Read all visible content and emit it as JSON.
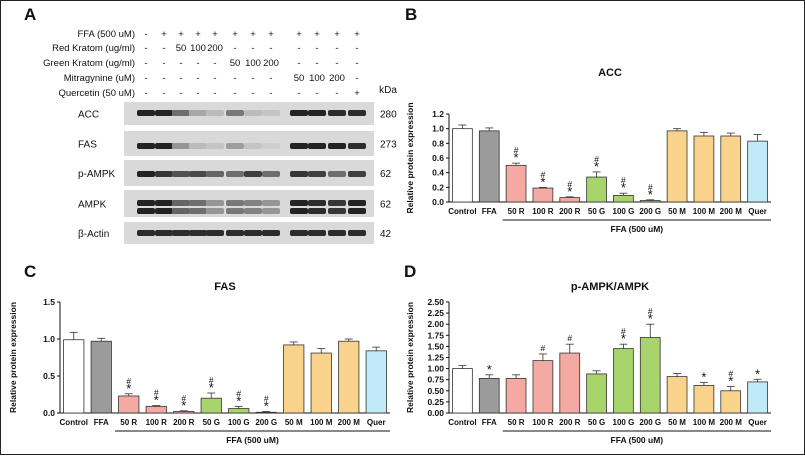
{
  "panels": {
    "A": "A",
    "B": "B",
    "C": "C",
    "D": "D"
  },
  "treatment_table": {
    "rows": [
      {
        "name": "FFA (500 uM)",
        "cells": [
          "-",
          "+",
          "+",
          "+",
          "+",
          "+",
          "+",
          "+",
          "+",
          "+",
          "+",
          "+"
        ]
      },
      {
        "name": "Red Kratom (ug/ml)",
        "cells": [
          "-",
          "-",
          "50",
          "100",
          "200",
          "-",
          "-",
          "-",
          "-",
          "-",
          "-",
          "-"
        ]
      },
      {
        "name": "Green Kratom (ug/ml)",
        "cells": [
          "-",
          "-",
          "-",
          "-",
          "-",
          "50",
          "100",
          "200",
          "-",
          "-",
          "-",
          "-"
        ]
      },
      {
        "name": "Mitragynine (uM)",
        "cells": [
          "-",
          "-",
          "-",
          "-",
          "-",
          "-",
          "-",
          "-",
          "50",
          "100",
          "200",
          "-"
        ]
      },
      {
        "name": "Quercetin (50 uM)",
        "cells": [
          "-",
          "-",
          "-",
          "-",
          "-",
          "-",
          "-",
          "-",
          "-",
          "-",
          "-",
          "+"
        ]
      }
    ]
  },
  "blots": {
    "kda_header": "kDa",
    "rows": [
      {
        "name": "ACC",
        "kda": "280",
        "intensity": [
          0.95,
          0.95,
          0.55,
          0.25,
          0.15,
          0.5,
          0.15,
          0.1,
          0.95,
          0.95,
          0.9,
          0.9
        ]
      },
      {
        "name": "FAS",
        "kda": "273",
        "intensity": [
          0.95,
          0.95,
          0.35,
          0.15,
          0.1,
          0.3,
          0.1,
          0.05,
          0.95,
          0.95,
          0.95,
          0.9
        ]
      },
      {
        "name": "p-AMPK",
        "kda": "62",
        "intensity": [
          0.95,
          0.85,
          0.7,
          0.75,
          0.6,
          0.55,
          0.8,
          0.55,
          0.85,
          0.8,
          0.55,
          0.8
        ]
      },
      {
        "name": "AMPK",
        "kda": "62",
        "intensity": [
          0.95,
          0.95,
          0.6,
          0.55,
          0.35,
          0.5,
          0.45,
          0.35,
          0.95,
          0.9,
          0.85,
          0.95
        ]
      },
      {
        "name": "β-Actin",
        "kda": "42",
        "intensity": [
          0.9,
          0.9,
          0.9,
          0.9,
          0.9,
          0.9,
          0.9,
          0.9,
          0.9,
          0.9,
          0.9,
          0.9
        ]
      }
    ]
  },
  "colors": {
    "white": "#ffffff",
    "gray": "#9b9b9b",
    "red": "#f4aaa2",
    "green": "#a8d46c",
    "orange": "#f9d38c",
    "blue": "#bfeaf6"
  },
  "chart_data": [
    {
      "panel": "B",
      "type": "bar",
      "title": "ACC",
      "ylabel": "Relative protein expression",
      "xgroup_label": "FFA (500 uM)",
      "categories": [
        "Control",
        "FFA",
        "50 R",
        "100 R",
        "200 R",
        "50 G",
        "100 G",
        "200 G",
        "50 M",
        "100 M",
        "200 M",
        "Quer"
      ],
      "values": [
        1.0,
        0.97,
        0.5,
        0.19,
        0.06,
        0.34,
        0.09,
        0.02,
        0.97,
        0.9,
        0.9,
        0.83
      ],
      "errors": [
        0.05,
        0.04,
        0.03,
        0.01,
        0.01,
        0.07,
        0.03,
        0.01,
        0.03,
        0.05,
        0.04,
        0.09
      ],
      "marks": [
        "",
        "",
        "#*",
        "#*",
        "#*",
        "#*",
        "#*",
        "#*",
        "",
        "",
        "",
        ""
      ],
      "color_keys": [
        "white",
        "gray",
        "red",
        "red",
        "red",
        "green",
        "green",
        "green",
        "orange",
        "orange",
        "orange",
        "blue"
      ],
      "ylim": [
        0,
        1.2
      ],
      "yticks": [
        "0.0",
        "0.2",
        "0.4",
        "0.6",
        "0.8",
        "1.0",
        "1.2"
      ]
    },
    {
      "panel": "C",
      "type": "bar",
      "title": "FAS",
      "ylabel": "Relative protein expression",
      "xgroup_label": "FFA (500 uM)",
      "categories": [
        "Control",
        "FFA",
        "50 R",
        "100 R",
        "200 R",
        "50 G",
        "100 G",
        "200 G",
        "50 M",
        "100 M",
        "200 M",
        "Quer"
      ],
      "values": [
        0.99,
        0.97,
        0.23,
        0.09,
        0.02,
        0.2,
        0.06,
        0.01,
        0.92,
        0.81,
        0.97,
        0.84
      ],
      "errors": [
        0.1,
        0.04,
        0.03,
        0.01,
        0.01,
        0.07,
        0.03,
        0.01,
        0.04,
        0.06,
        0.03,
        0.05
      ],
      "marks": [
        "",
        "",
        "#*",
        "#*",
        "#*",
        "#*",
        "#*",
        "#*",
        "",
        "",
        "",
        ""
      ],
      "color_keys": [
        "white",
        "gray",
        "red",
        "red",
        "red",
        "green",
        "green",
        "green",
        "orange",
        "orange",
        "orange",
        "blue"
      ],
      "ylim": [
        0,
        1.5
      ],
      "yticks": [
        "0.0",
        "0.5",
        "1.0",
        "1.5"
      ]
    },
    {
      "panel": "D",
      "type": "bar",
      "title": "p-AMPK/AMPK",
      "ylabel": "Relative protein expression",
      "xgroup_label": "FFA (500 uM)",
      "categories": [
        "Control",
        "FFA",
        "50 R",
        "100 R",
        "200 R",
        "50 G",
        "100 G",
        "200 G",
        "50 M",
        "100 M",
        "200 M",
        "Quer"
      ],
      "values": [
        1.0,
        0.78,
        0.78,
        1.18,
        1.35,
        0.88,
        1.45,
        1.7,
        0.82,
        0.62,
        0.5,
        0.7
      ],
      "errors": [
        0.07,
        0.08,
        0.08,
        0.15,
        0.2,
        0.07,
        0.1,
        0.3,
        0.07,
        0.07,
        0.1,
        0.06
      ],
      "marks": [
        "",
        "*",
        "",
        "#",
        "#",
        "",
        "#*",
        "#*",
        "",
        "*",
        "#*",
        "*"
      ],
      "color_keys": [
        "white",
        "gray",
        "red",
        "red",
        "red",
        "green",
        "green",
        "green",
        "orange",
        "orange",
        "orange",
        "blue"
      ],
      "ylim": [
        0,
        2.5
      ],
      "yticks": [
        "0.00",
        "0.25",
        "0.50",
        "0.75",
        "1.00",
        "1.25",
        "1.50",
        "1.75",
        "2.00",
        "2.25",
        "2.50"
      ]
    }
  ]
}
